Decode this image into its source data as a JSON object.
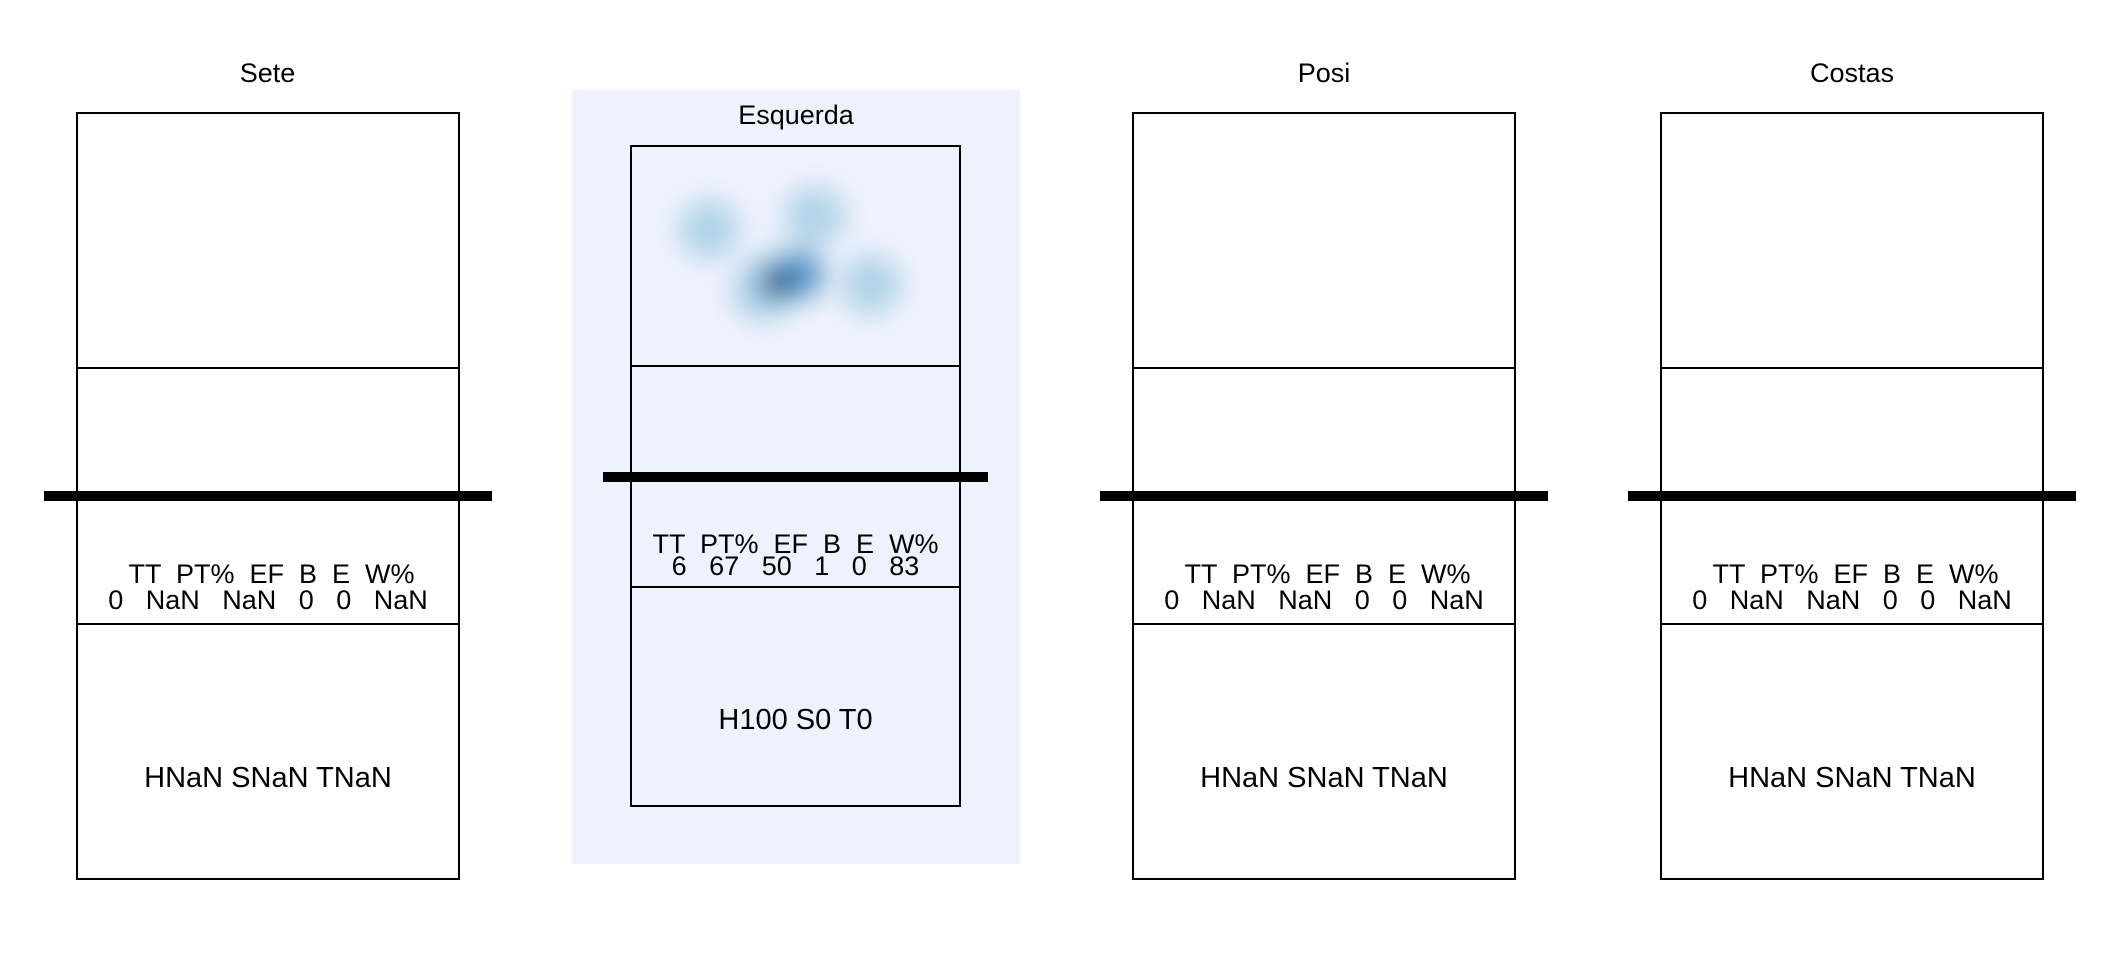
{
  "colors": {
    "background": "#ffffff",
    "highlight": "#eef2fd",
    "heat_light": "#9ecae1",
    "heat_dark": "#08306b"
  },
  "chart_data": [
    {
      "type": "heatmap",
      "title": "Sete",
      "stats": {
        "header": " TT  PT%  EF  B  E  W%",
        "values": "0   NaN   NaN   0   0   NaN"
      },
      "summary": "HNaN SNaN TNaN",
      "highlighted": false,
      "points": []
    },
    {
      "type": "heatmap",
      "title": "Esquerda",
      "stats": {
        "header": "TT  PT%  EF  B  E  W%",
        "values": "6   67   50   1   0   83"
      },
      "summary": "H100 S0 T0",
      "highlighted": true,
      "points": [
        [
          0.24,
          0.38
        ],
        [
          0.56,
          0.32
        ],
        [
          0.44,
          0.61
        ],
        [
          0.5,
          0.59
        ],
        [
          0.73,
          0.63
        ],
        [
          0.4,
          0.66
        ]
      ]
    },
    {
      "type": "heatmap",
      "title": "Posi",
      "stats": {
        "header": " TT  PT%  EF  B  E  W%",
        "values": "0   NaN   NaN   0   0   NaN"
      },
      "summary": "HNaN SNaN TNaN",
      "highlighted": false,
      "points": []
    },
    {
      "type": "heatmap",
      "title": "Costas",
      "stats": {
        "header": " TT  PT%  EF  B  E  W%",
        "values": "0   NaN   NaN   0   0   NaN"
      },
      "summary": "HNaN SNaN TNaN",
      "highlighted": false,
      "points": []
    }
  ]
}
